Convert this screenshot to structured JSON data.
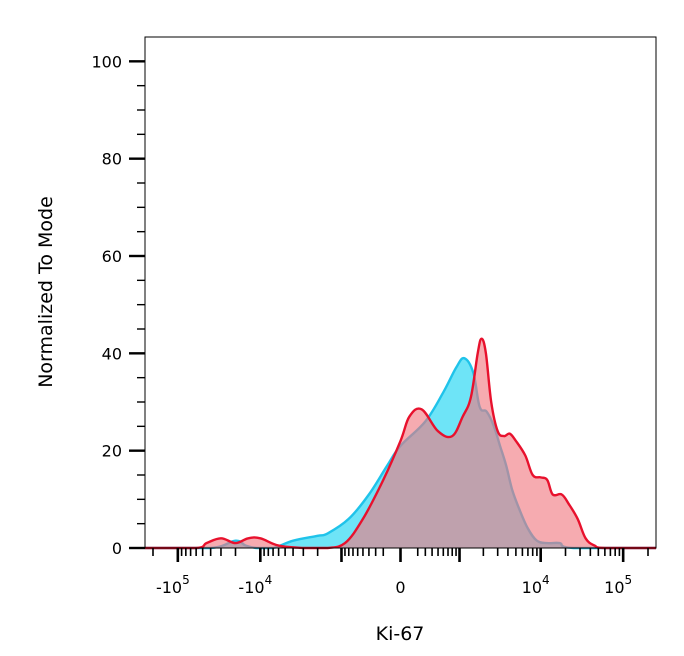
{
  "chart_data": {
    "type": "area",
    "xlabel": "Ki-67",
    "ylabel": "Normalized To Mode",
    "ylim": [
      0,
      105
    ],
    "y_ticks": [
      0,
      20,
      40,
      60,
      80,
      100
    ],
    "x_scale": "biexponential",
    "xlim": [
      -250000,
      250000
    ],
    "x_ticks": [
      {
        "value": -100000,
        "base": "-10",
        "exp": "5"
      },
      {
        "value": -10000,
        "base": "-10",
        "exp": "4"
      },
      {
        "value": 0,
        "base": "0",
        "exp": ""
      },
      {
        "value": 10000,
        "base": "10",
        "exp": "4"
      },
      {
        "value": 100000,
        "base": "10",
        "exp": "5"
      }
    ],
    "grid": false,
    "series": [
      {
        "fill": "#66E3F7",
        "stroke": "#1FC3EA",
        "points": [
          [
            -250000,
            0
          ],
          [
            -40000,
            0
          ],
          [
            -20000,
            1.5
          ],
          [
            -15000,
            0.5
          ],
          [
            -11000,
            0
          ],
          [
            -7000,
            0
          ],
          [
            -4000,
            1.5
          ],
          [
            -2000,
            2.5
          ],
          [
            -1500,
            3
          ],
          [
            -800,
            6
          ],
          [
            -400,
            11
          ],
          [
            -150,
            17
          ],
          [
            0,
            21
          ],
          [
            300,
            26
          ],
          [
            600,
            32
          ],
          [
            900,
            37
          ],
          [
            1150,
            39
          ],
          [
            1500,
            36
          ],
          [
            1800,
            29
          ],
          [
            2200,
            28
          ],
          [
            2700,
            25
          ],
          [
            3200,
            21
          ],
          [
            3800,
            17
          ],
          [
            4500,
            12
          ],
          [
            5500,
            8
          ],
          [
            7000,
            4
          ],
          [
            9000,
            1.5
          ],
          [
            12000,
            1
          ],
          [
            17000,
            1
          ],
          [
            25000,
            0
          ],
          [
            250000,
            0
          ]
        ]
      },
      {
        "fill": "#F07880",
        "stroke": "#E8112D",
        "points": [
          [
            -250000,
            0
          ],
          [
            -60000,
            0
          ],
          [
            -45000,
            1
          ],
          [
            -30000,
            2
          ],
          [
            -20000,
            1
          ],
          [
            -14000,
            2
          ],
          [
            -10000,
            2
          ],
          [
            -6000,
            0.5
          ],
          [
            -3000,
            0
          ],
          [
            -1500,
            0
          ],
          [
            -900,
            1
          ],
          [
            -500,
            6
          ],
          [
            -200,
            14
          ],
          [
            0,
            22
          ],
          [
            100,
            27
          ],
          [
            250,
            28.5
          ],
          [
            500,
            24
          ],
          [
            800,
            23
          ],
          [
            1100,
            27
          ],
          [
            1400,
            31
          ],
          [
            1700,
            40
          ],
          [
            1900,
            43
          ],
          [
            2150,
            40
          ],
          [
            2500,
            30
          ],
          [
            3000,
            24
          ],
          [
            3600,
            23
          ],
          [
            4200,
            23.5
          ],
          [
            5000,
            22
          ],
          [
            6500,
            19
          ],
          [
            8000,
            15
          ],
          [
            10000,
            14.5
          ],
          [
            12000,
            14
          ],
          [
            14000,
            11
          ],
          [
            18000,
            11
          ],
          [
            22000,
            9
          ],
          [
            28000,
            6
          ],
          [
            35000,
            2
          ],
          [
            45000,
            0.5
          ],
          [
            60000,
            0
          ],
          [
            250000,
            0
          ]
        ]
      }
    ]
  }
}
